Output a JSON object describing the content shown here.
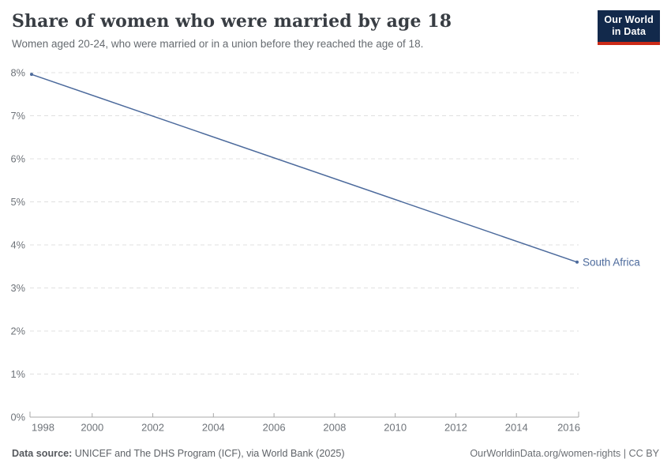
{
  "header": {
    "title": "Share of women who were married by age 18",
    "subtitle": "Women aged 20-24, who were married or in a union before they reached the age of 18.",
    "logo": {
      "line1": "Our World",
      "line2": "in Data",
      "bg_color": "#12294b",
      "accent_color": "#cb2a17"
    }
  },
  "chart_data": {
    "type": "line",
    "title": "Share of women who were married by age 18",
    "subtitle": "Women aged 20-24, who were married or in a union before they reached the age of 18.",
    "xlabel": "",
    "ylabel": "",
    "xlim": [
      1998,
      2016
    ],
    "ylim": [
      0,
      8
    ],
    "x_ticks": [
      1998,
      2000,
      2002,
      2004,
      2006,
      2008,
      2010,
      2012,
      2014,
      2016
    ],
    "y_ticks": [
      0,
      1,
      2,
      3,
      4,
      5,
      6,
      7,
      8
    ],
    "y_tick_suffix": "%",
    "grid": "horizontal-dashed",
    "grid_color": "#e0e0e0",
    "axis_color": "#a8a8a8",
    "tick_label_color": "#6e7379",
    "series": [
      {
        "name": "South Africa",
        "color": "#4C6A9C",
        "points": [
          [
            1998,
            7.96
          ],
          [
            2016,
            3.6
          ]
        ],
        "end_markers": true
      }
    ],
    "legend_position": "end-of-line-label"
  },
  "footer": {
    "source_label": "Data source:",
    "source_text": " UNICEF and The DHS Program (ICF), via World Bank (2025)",
    "link_text": "OurWorldinData.org/women-rights | CC BY"
  }
}
